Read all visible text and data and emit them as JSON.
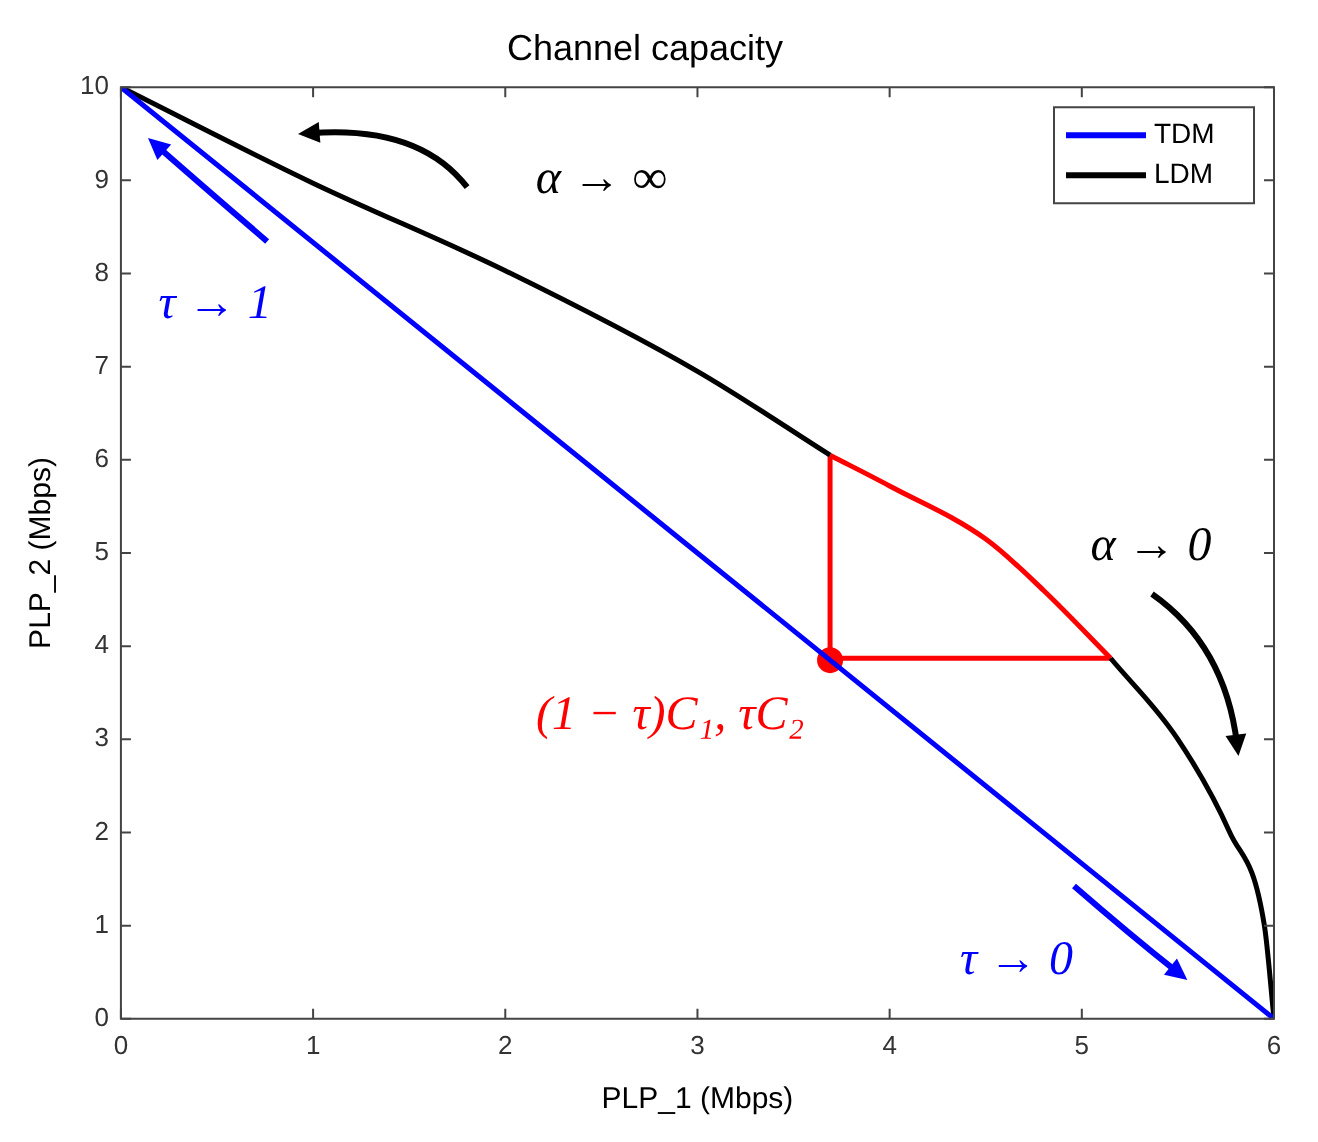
{
  "chart_data": {
    "type": "line",
    "title": "Channel capacity",
    "xlabel": "PLP_1 (Mbps)",
    "ylabel": "PLP_2 (Mbps)",
    "xlim": [
      0,
      6
    ],
    "ylim": [
      0,
      10
    ],
    "xticks": [
      0,
      1,
      2,
      3,
      4,
      5,
      6
    ],
    "yticks": [
      0,
      1,
      2,
      3,
      4,
      5,
      6,
      7,
      8,
      9,
      10
    ],
    "grid": false,
    "legend": "top right",
    "marker": "none",
    "line_style": "solid",
    "series": [
      {
        "name": "TDM",
        "color": "#0000ff",
        "x": [
          0,
          6
        ],
        "values": [
          10,
          0
        ]
      },
      {
        "name": "LDM",
        "color": "#000000",
        "x": [
          0,
          1,
          2,
          3,
          3.69,
          4,
          5.15,
          5.5,
          5.77,
          5.95,
          6
        ],
        "values": [
          10,
          8.97,
          8.03,
          6.95,
          6.05,
          null,
          3.87,
          3.0,
          2.0,
          1.0,
          0
        ]
      },
      {
        "color": "#ff0000",
        "x": [
          3.69,
          4,
          4.5,
          4.8,
          5.15
        ],
        "values": [
          6.05,
          5.72,
          5.15,
          4.6,
          3.87
        ]
      },
      {
        "color": "#ff0000",
        "x": [
          3.69,
          3.69
        ],
        "values": [
          3.87,
          6.05
        ]
      },
      {
        "color": "#ff0000",
        "x": [
          3.69,
          5.15
        ],
        "values": [
          3.87,
          3.87
        ]
      },
      {
        "type": "scatter",
        "marker": "circle",
        "color": "#ff0000",
        "x": [
          3.69
        ],
        "values": [
          3.85
        ]
      }
    ],
    "annotations": [
      "α → ∞",
      "τ → 1",
      "α → 0",
      "τ → 0",
      {
        "text": "(1 − τ)C₁, τC₂",
        "x": 3.69,
        "y": 3.85
      }
    ]
  }
}
